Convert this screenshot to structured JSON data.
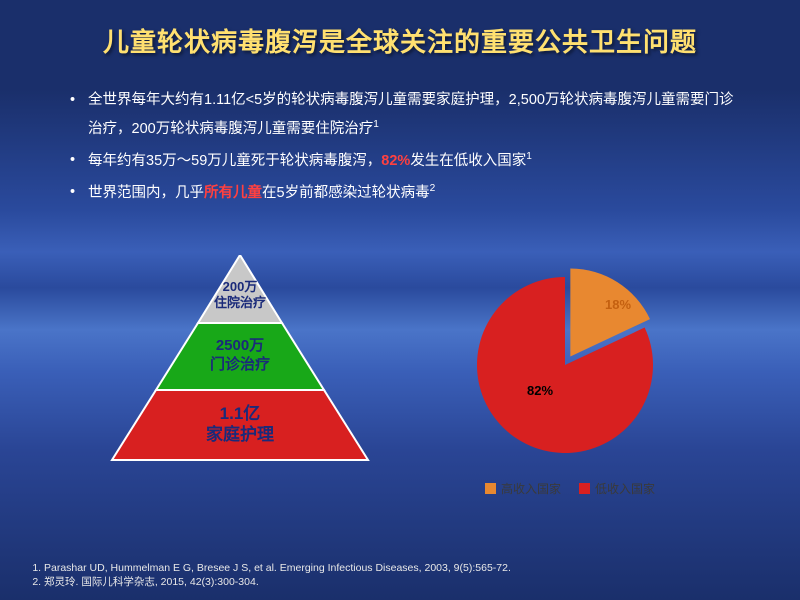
{
  "title": "儿童轮状病毒腹泻是全球关注的重要公共卫生问题",
  "bullets": {
    "b1_a": "全世界每年大约有1.11亿<5岁的轮状病毒腹泻儿童需要家庭护理，2,500万轮状病毒腹泻儿童需要门诊治疗，200万轮状病毒腹泻儿童需要住院治疗",
    "b1_sup": "1",
    "b2_a": "每年约有35万～59万儿童死于轮状病毒腹泻，",
    "b2_red": "82%",
    "b2_b": "发生在低收入国家",
    "b2_sup": "1",
    "b3_a": "世界范围内，几乎",
    "b3_red": "所有儿童",
    "b3_b": "在5岁前都感染过轮状病毒",
    "b3_sup": "2"
  },
  "pyramid": {
    "tiers": [
      {
        "line1": "200万",
        "line2": "住院治疗",
        "color": "#c8c8c8",
        "text_color": "#1a2a7a",
        "fontsize": 13
      },
      {
        "line1": "2500万",
        "line2": "门诊治疗",
        "color": "#18a818",
        "text_color": "#1a2a7a",
        "fontsize": 15
      },
      {
        "line1": "1.1亿",
        "line2": "家庭护理",
        "color": "#d82020",
        "text_color": "#1a2a7a",
        "fontsize": 17
      }
    ]
  },
  "pie": {
    "slices": [
      {
        "label": "18%",
        "value": 18,
        "color": "#e88830",
        "label_color": "#c46010"
      },
      {
        "label": "82%",
        "value": 82,
        "color": "#d82020",
        "label_color": "#000"
      }
    ],
    "legend": [
      {
        "label": "高收入国家",
        "color": "#e88830"
      },
      {
        "label": "低收入国家",
        "color": "#d82020"
      }
    ]
  },
  "refs": {
    "r1": "Parashar UD, Hummelman E G, Bresee J S, et al. Emerging Infectious Diseases, 2003, 9(5):565-72.",
    "r2": "郑灵玲. 国际儿科学杂志, 2015, 42(3):300-304."
  }
}
